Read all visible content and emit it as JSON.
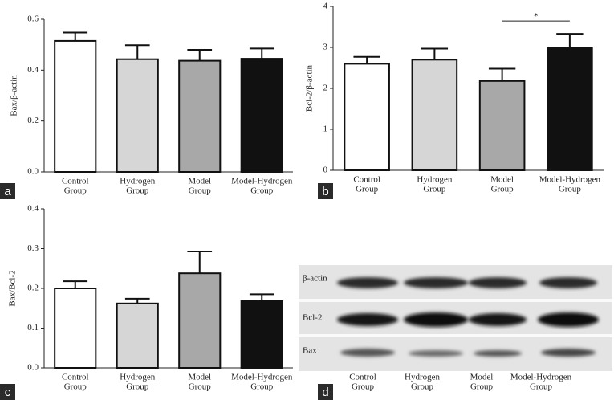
{
  "chart_data": [
    {
      "type": "bar",
      "panel_label": "a",
      "y_label": "Bax/β-actin",
      "categories": [
        [
          "Control",
          "Group"
        ],
        [
          "Hydrogen",
          "Group"
        ],
        [
          "Model",
          "Group"
        ],
        [
          "Model-Hydrogen",
          "Group"
        ]
      ],
      "values": [
        0.515,
        0.443,
        0.437,
        0.445
      ],
      "errors": [
        0.033,
        0.055,
        0.043,
        0.04
      ],
      "colors": [
        "#ffffff",
        "#d6d6d6",
        "#a8a8a8",
        "#111111"
      ],
      "ylim": [
        0,
        0.6
      ],
      "yticks": [
        {
          "value": 0,
          "label": "0.0"
        },
        0.2,
        0.4,
        0.6
      ]
    },
    {
      "type": "bar",
      "panel_label": "b",
      "y_label": "Bcl-2/β-actin",
      "annotation": "*",
      "categories": [
        [
          "Control",
          "Group"
        ],
        [
          "Hydrogen",
          "Group"
        ],
        [
          "Model",
          "Group"
        ],
        [
          "Model-Hydrogen",
          "Group"
        ]
      ],
      "values": [
        2.6,
        2.7,
        2.18,
        3.0
      ],
      "errors": [
        0.17,
        0.27,
        0.3,
        0.33
      ],
      "colors": [
        "#ffffff",
        "#d6d6d6",
        "#a8a8a8",
        "#111111"
      ],
      "ylim": [
        0,
        4
      ],
      "yticks": [
        0,
        1,
        2,
        3,
        4
      ]
    },
    {
      "type": "bar",
      "panel_label": "c",
      "y_label": "Bax/Bcl-2",
      "categories": [
        [
          "Control",
          "Group"
        ],
        [
          "Hydrogen",
          "Group"
        ],
        [
          "Model",
          "Group"
        ],
        [
          "Model-Hydrogen",
          "Group"
        ]
      ],
      "values": [
        0.2,
        0.162,
        0.238,
        0.168
      ],
      "errors": [
        0.018,
        0.012,
        0.055,
        0.017
      ],
      "colors": [
        "#ffffff",
        "#d6d6d6",
        "#a8a8a8",
        "#111111"
      ],
      "ylim": [
        0,
        0.4
      ],
      "yticks": [
        {
          "value": 0,
          "label": "0.0"
        },
        0.1,
        0.2,
        0.3,
        0.4
      ]
    }
  ],
  "blot": {
    "panel_label": "d",
    "rows": [
      "β-actin",
      "Bcl-2",
      "Bax"
    ],
    "categories": [
      [
        "Control",
        "Group"
      ],
      [
        "Hydrogen",
        "Group"
      ],
      [
        "Model",
        "Group"
      ],
      [
        "Model-Hydrogen",
        "Group"
      ]
    ]
  }
}
